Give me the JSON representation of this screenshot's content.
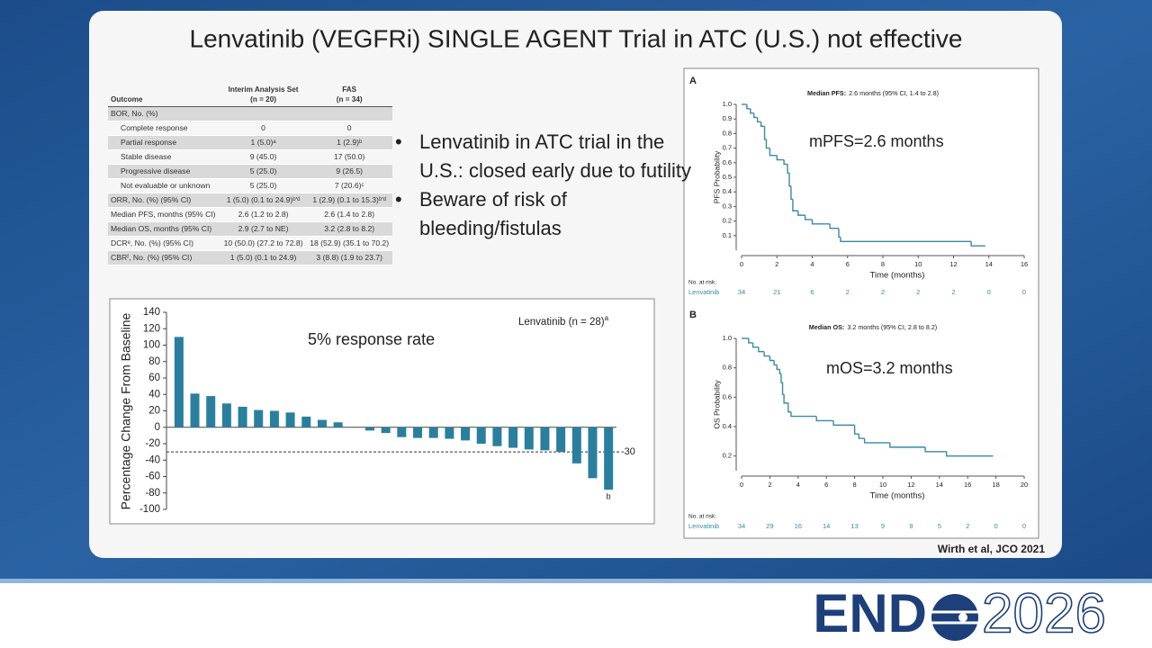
{
  "slide": {
    "title": "Lenvatinib (VEGFRi) SINGLE AGENT Trial in ATC (U.S.) not effective",
    "bullets": [
      "Lenvatinib in ATC trial in the U.S.: closed early due to futility",
      "Beware of risk of bleeding/fistulas"
    ],
    "citation": "Wirth et al, JCO 2021",
    "logo": {
      "left": "END",
      "right": "2026"
    }
  },
  "table": {
    "header": [
      [
        "Outcome"
      ],
      [
        "Interim Analysis Set",
        "(n = 20)"
      ],
      [
        "FAS",
        "(n = 34)"
      ]
    ],
    "rows": [
      [
        "BOR, No. (%)",
        "",
        ""
      ],
      [
        "Complete response",
        "0",
        "0"
      ],
      [
        "Partial response",
        "1 (5.0)ᵃ",
        "1 (2.9)ᵇ"
      ],
      [
        "Stable disease",
        "9 (45.0)",
        "17 (50.0)"
      ],
      [
        "Progressive disease",
        "5 (25.0)",
        "9 (26.5)"
      ],
      [
        "Not evaluable or unknown",
        "5 (25.0)",
        "7 (20.6)ᶜ"
      ],
      [
        "ORR, No. (%) (95% CI)",
        "1 (5.0) (0.1 to 24.9)ᵇ'ᵈ",
        "1 (2.9) (0.1 to 15.3)ᵇ'ᵈ"
      ],
      [
        "Median PFS, months (95% CI)",
        "2.6 (1.2 to 2.8)",
        "2.6 (1.4 to 2.8)"
      ],
      [
        "Median OS, months (95% CI)",
        "2.9 (2.7 to NE)",
        "3.2 (2.8 to 8.2)"
      ],
      [
        "DCRᵉ, No. (%) (95% CI)",
        "10 (50.0) (27.2 to 72.8)",
        "18 (52.9) (35.1 to 70.2)"
      ],
      [
        "CBRᶠ, No. (%) (95% CI)",
        "1 (5.0) (0.1 to 24.9)",
        "3 (8.8) (1.9 to 23.7)"
      ]
    ]
  },
  "chart_data": [
    {
      "type": "bar",
      "annotation": "5% response rate",
      "legend": "Lenvatinib (n = 28)",
      "legend_sup": "a",
      "ylabel": "Percentage Change From Baseline",
      "values": [
        110,
        41,
        38,
        29,
        25,
        21,
        20,
        18,
        13,
        9,
        6,
        0,
        -4,
        -7,
        -12,
        -13,
        -13,
        -14,
        -16,
        -20,
        -23,
        -25,
        -27,
        -28,
        -30,
        -44,
        -62,
        -76
      ],
      "last_bar_note": "b",
      "color": "#2a7f9e",
      "reference_line": -30,
      "ylim": [
        -100,
        140
      ],
      "yticks": [
        140,
        120,
        100,
        80,
        60,
        40,
        20,
        0,
        -20,
        -40,
        -60,
        -80,
        -100
      ]
    },
    {
      "type": "step",
      "panel": "A",
      "subtitle_bold": "Median PFS:",
      "subtitle": "2.6 months (95% CI, 1.4 to 2.8)",
      "annotation": "mPFS=2.6 months",
      "xlabel": "Time (months)",
      "ylabel": "PFS Probability",
      "x": [
        0,
        0.3,
        0.5,
        0.7,
        0.9,
        1.1,
        1.3,
        1.4,
        1.6,
        2.0,
        2.4,
        2.6,
        2.7,
        2.8,
        2.9,
        3.2,
        3.6,
        4.0,
        5.0,
        5.5,
        5.6,
        13.0,
        13.8
      ],
      "series": [
        {
          "name": "Lenvatinib",
          "color": "#3a8aa0",
          "values": [
            1.0,
            0.97,
            0.94,
            0.91,
            0.88,
            0.85,
            0.76,
            0.7,
            0.65,
            0.62,
            0.59,
            0.53,
            0.44,
            0.35,
            0.27,
            0.24,
            0.21,
            0.18,
            0.15,
            0.09,
            0.06,
            0.03,
            0.03
          ]
        }
      ],
      "xlim": [
        0,
        16
      ],
      "xticks": [
        0,
        2,
        4,
        6,
        8,
        10,
        12,
        14,
        16
      ],
      "ylim": [
        0,
        1
      ],
      "yticks": [
        0.1,
        0.2,
        0.3,
        0.4,
        0.5,
        0.6,
        0.7,
        0.8,
        0.9,
        {
          "value": 1,
          "label": "1.0"
        }
      ],
      "at_risk_title": "No. at risk:",
      "at_risk": [
        34,
        21,
        6,
        2,
        2,
        2,
        2,
        0,
        0
      ]
    },
    {
      "type": "step",
      "panel": "B",
      "subtitle_bold": "Median OS:",
      "subtitle": "3.2 months (95% CI, 2.8 to 8.2)",
      "annotation": "mOS=3.2 months",
      "xlabel": "Time (months)",
      "ylabel": "OS Probability",
      "x": [
        0,
        0.5,
        0.8,
        1.2,
        1.6,
        2.0,
        2.3,
        2.5,
        2.7,
        2.8,
        2.9,
        3.0,
        3.3,
        3.5,
        5.3,
        6.5,
        8.0,
        8.3,
        8.7,
        10.5,
        13.0,
        14.5,
        17.8
      ],
      "series": [
        {
          "name": "Lenvatinib",
          "color": "#3a8aa0",
          "values": [
            1.0,
            0.97,
            0.94,
            0.91,
            0.88,
            0.85,
            0.82,
            0.79,
            0.76,
            0.7,
            0.62,
            0.56,
            0.5,
            0.47,
            0.44,
            0.41,
            0.35,
            0.32,
            0.29,
            0.26,
            0.23,
            0.2,
            0.2
          ]
        }
      ],
      "xlim": [
        0,
        20
      ],
      "xticks": [
        0,
        2,
        4,
        6,
        8,
        10,
        12,
        14,
        16,
        18,
        20
      ],
      "ylim": [
        0.1,
        1
      ],
      "yticks": [
        0.2,
        0.4,
        0.6,
        0.8,
        {
          "value": 1,
          "label": "1.0"
        }
      ],
      "at_risk_title": "No. at risk:",
      "at_risk": [
        34,
        29,
        16,
        14,
        13,
        9,
        8,
        5,
        2,
        0,
        0
      ]
    }
  ]
}
